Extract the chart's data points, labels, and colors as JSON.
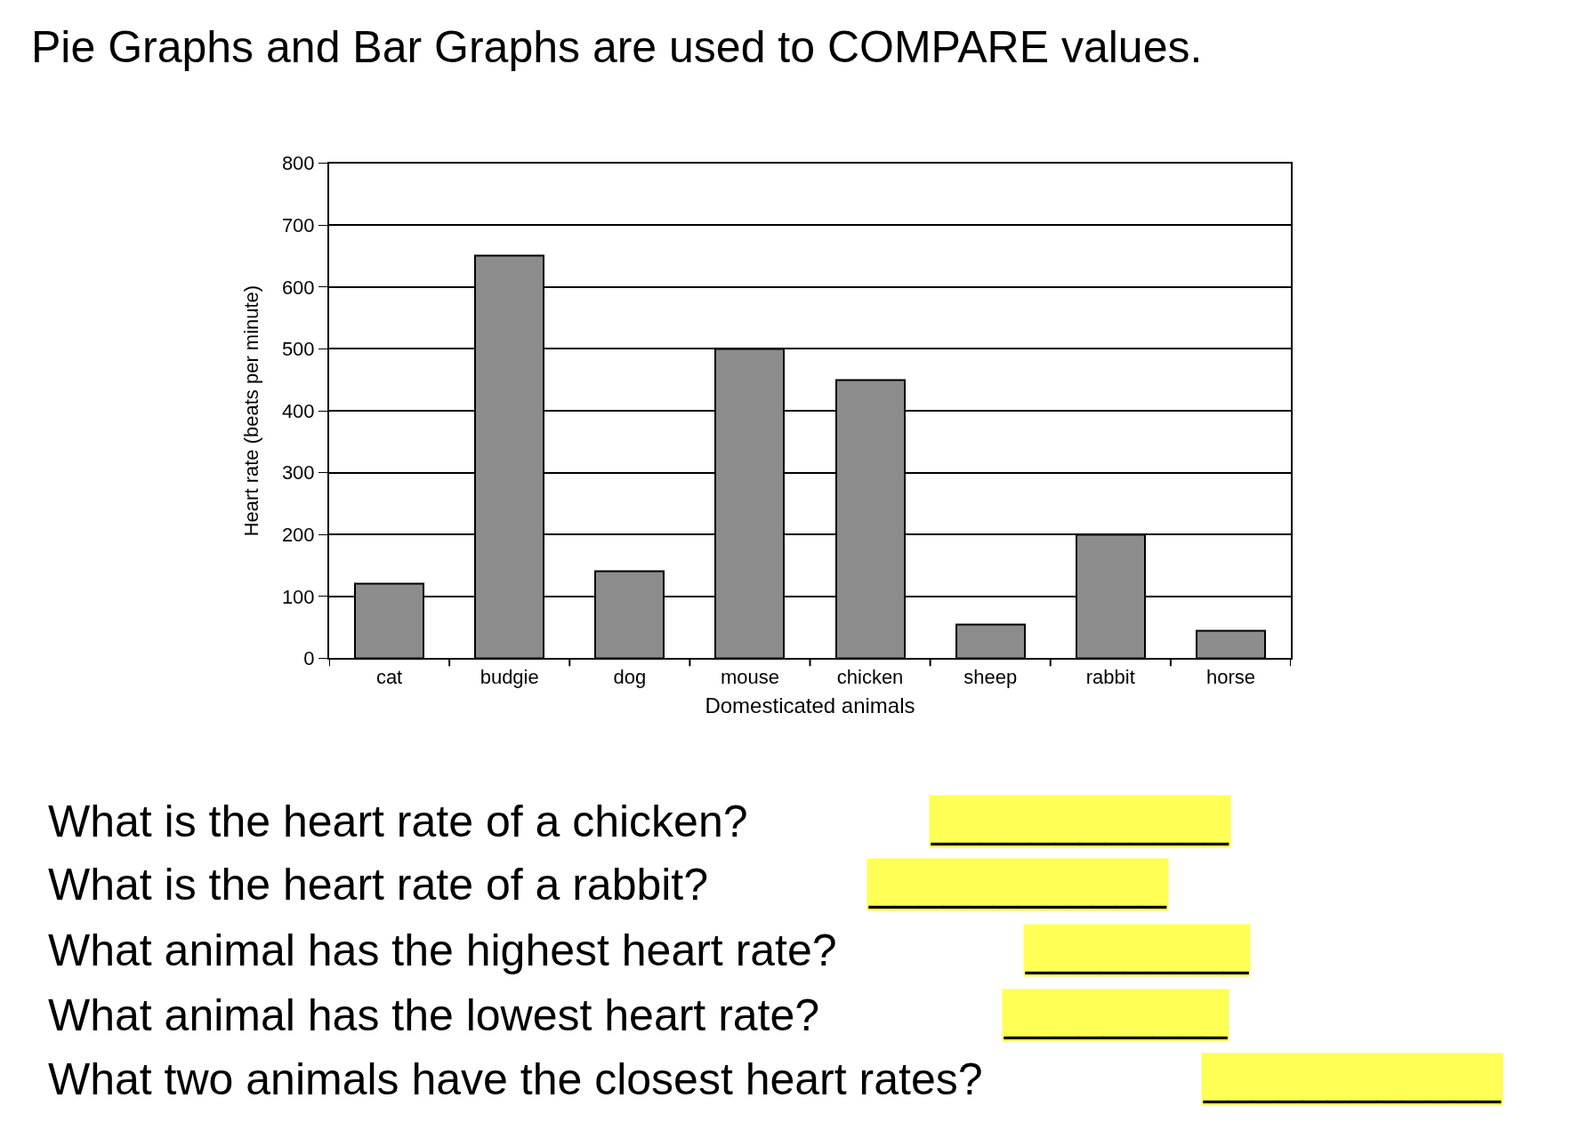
{
  "chart_data": {
    "type": "bar",
    "title": "Pie Graphs and Bar Graphs are used to COMPARE values.",
    "xlabel": "Domesticated animals",
    "ylabel": "Heart rate (beats per minute)",
    "categories": [
      "cat",
      "budgie",
      "dog",
      "mouse",
      "chicken",
      "sheep",
      "rabbit",
      "horse"
    ],
    "values": [
      120,
      650,
      140,
      500,
      450,
      55,
      200,
      45
    ],
    "color": "#8c8c8c",
    "ylim": [
      0,
      800
    ],
    "yticks": [
      0,
      100,
      200,
      300,
      400,
      500,
      600,
      700,
      800
    ],
    "grid": "y",
    "legend": false,
    "annotations": [
      "What is the heart rate of a chicken?",
      "What is the heart rate of a rabbit?",
      "What animal has the highest heart rate?",
      "What animal has the lowest heart rate?",
      "What two animals have the closest heart rates?",
      "____________",
      "____________",
      "_________",
      "_________",
      "____________"
    ]
  }
}
